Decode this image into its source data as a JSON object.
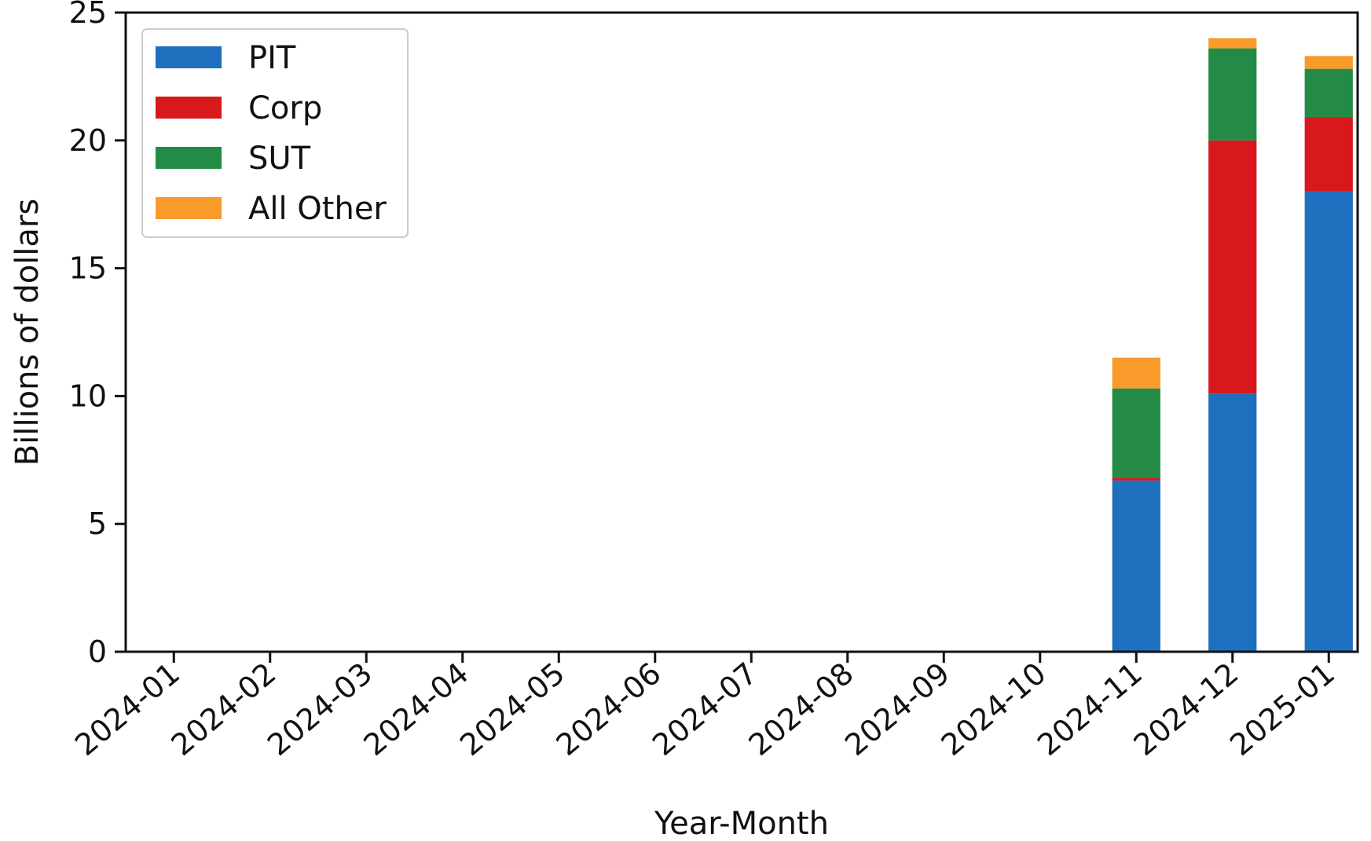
{
  "chart_data": {
    "type": "bar",
    "stacked": true,
    "xlabel": "Year-Month",
    "ylabel": "Billions of dollars",
    "ylim": [
      0,
      25
    ],
    "yticks": [
      0,
      5,
      10,
      15,
      20,
      25
    ],
    "grid": false,
    "legend_position": "top-left",
    "categories": [
      "2024-01",
      "2024-02",
      "2024-03",
      "2024-04",
      "2024-05",
      "2024-06",
      "2024-07",
      "2024-08",
      "2024-09",
      "2024-10",
      "2024-11",
      "2024-12",
      "2025-01"
    ],
    "series": [
      {
        "name": "PIT",
        "color": "#1f6fbf",
        "values": [
          0,
          0,
          0,
          0,
          0,
          0,
          0,
          0,
          0,
          0,
          6.7,
          10.1,
          18.0
        ]
      },
      {
        "name": "Corp",
        "color": "#d7191c",
        "values": [
          0,
          0,
          0,
          0,
          0,
          0,
          0,
          0,
          0,
          0,
          0.1,
          9.9,
          2.9
        ]
      },
      {
        "name": "SUT",
        "color": "#238b45",
        "values": [
          0,
          0,
          0,
          0,
          0,
          0,
          0,
          0,
          0,
          0,
          3.5,
          3.6,
          1.9
        ]
      },
      {
        "name": "All Other",
        "color": "#f89b2b",
        "values": [
          0,
          0,
          0,
          0,
          0,
          0,
          0,
          0,
          0,
          0,
          1.2,
          0.4,
          0.5
        ]
      }
    ]
  }
}
